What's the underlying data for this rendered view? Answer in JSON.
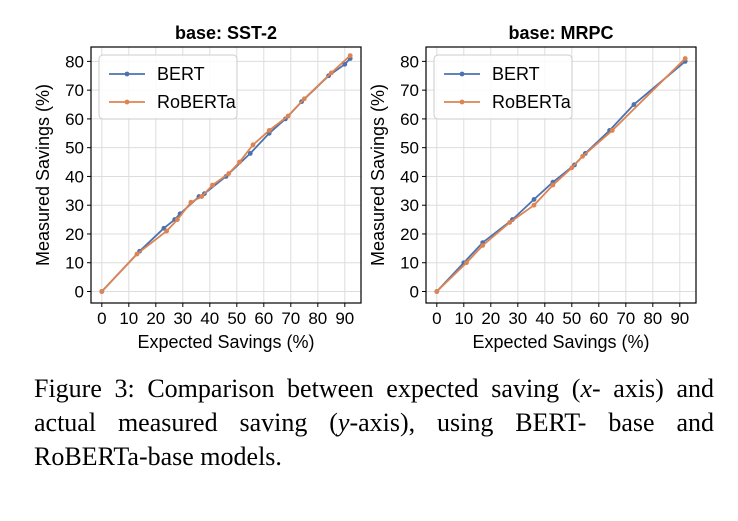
{
  "colors": {
    "bert": "#4C72B0",
    "roberta": "#DD8452",
    "grid": "#dddddd",
    "axis": "#000000"
  },
  "chart_data": [
    {
      "type": "line",
      "title": "base: SST-2",
      "xlabel": "Expected Savings (%)",
      "ylabel": "Measured Savings (%)",
      "xticks": [
        0,
        10,
        20,
        30,
        40,
        50,
        60,
        70,
        80,
        90
      ],
      "yticks": [
        0,
        10,
        20,
        30,
        40,
        50,
        60,
        70,
        80
      ],
      "xlim": [
        -4,
        96
      ],
      "ylim": [
        -4,
        85
      ],
      "grid": true,
      "legend_position": "top-left",
      "series": [
        {
          "name": "BERT",
          "color": "#4C72B0",
          "x": [
            0,
            14,
            23,
            27,
            29,
            36,
            38,
            46,
            55,
            62,
            68,
            74,
            84,
            90,
            92
          ],
          "y": [
            0,
            14,
            22,
            25,
            27,
            33,
            34,
            40,
            48,
            55,
            60,
            66,
            75,
            79,
            81
          ]
        },
        {
          "name": "RoBERTa",
          "color": "#DD8452",
          "x": [
            0,
            13,
            24,
            28,
            33,
            37,
            41,
            47,
            51,
            56,
            62,
            69,
            75,
            85,
            92
          ],
          "y": [
            0,
            13,
            21,
            25,
            31,
            33,
            37,
            41,
            45,
            51,
            56,
            61,
            67,
            76,
            82
          ]
        }
      ]
    },
    {
      "type": "line",
      "title": "base: MRPC",
      "xlabel": "Expected Savings (%)",
      "ylabel": "Measured Savings (%)",
      "xticks": [
        0,
        10,
        20,
        30,
        40,
        50,
        60,
        70,
        80,
        90
      ],
      "yticks": [
        0,
        10,
        20,
        30,
        40,
        50,
        60,
        70,
        80
      ],
      "xlim": [
        -4,
        96
      ],
      "ylim": [
        -4,
        85
      ],
      "grid": true,
      "legend_position": "top-left",
      "series": [
        {
          "name": "BERT",
          "color": "#4C72B0",
          "x": [
            0,
            10,
            17,
            28,
            36,
            43,
            51,
            55,
            64,
            73,
            92
          ],
          "y": [
            0,
            10,
            17,
            25,
            32,
            38,
            44,
            48,
            56,
            65,
            80
          ]
        },
        {
          "name": "RoBERTa",
          "color": "#DD8452",
          "x": [
            0,
            11,
            17,
            27,
            36,
            43,
            50,
            54,
            65,
            92
          ],
          "y": [
            0,
            10,
            16,
            24,
            30,
            37,
            43,
            47,
            56,
            81
          ]
        }
      ]
    }
  ],
  "caption": {
    "line1_prefix": "Figure 3:  Comparison between expected saving (",
    "x_var": "x",
    "line1_suffix": "-",
    "line2_prefix": "axis) and actual measured saving (",
    "y_var": "y",
    "line2_suffix": "-axis), using BERT-",
    "line3": "base and RoBERTa-base models."
  }
}
